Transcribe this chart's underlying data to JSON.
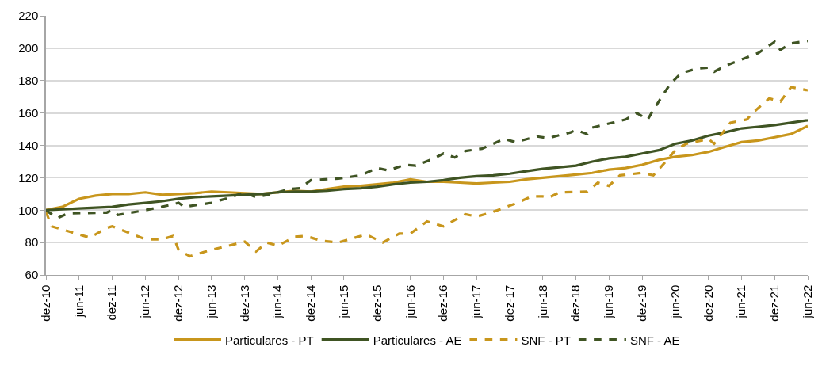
{
  "chart_data": {
    "type": "line",
    "ylim": [
      60,
      220
    ],
    "yticks": [
      60,
      80,
      100,
      120,
      140,
      160,
      180,
      200,
      220
    ],
    "xlim": [
      "2010-12",
      "2022-06"
    ],
    "xticks": [
      {
        "value": "2010-12",
        "label": "dez-10"
      },
      {
        "value": "2011-06",
        "label": "jun-11"
      },
      {
        "value": "2011-12",
        "label": "dez-11"
      },
      {
        "value": "2012-06",
        "label": "jun-12"
      },
      {
        "value": "2012-12",
        "label": "dez-12"
      },
      {
        "value": "2013-06",
        "label": "jun-13"
      },
      {
        "value": "2013-12",
        "label": "dez-13"
      },
      {
        "value": "2014-06",
        "label": "jun-14"
      },
      {
        "value": "2014-12",
        "label": "dez-14"
      },
      {
        "value": "2015-06",
        "label": "jun-15"
      },
      {
        "value": "2015-12",
        "label": "dez-15"
      },
      {
        "value": "2016-06",
        "label": "jun-16"
      },
      {
        "value": "2016-12",
        "label": "dez-16"
      },
      {
        "value": "2017-06",
        "label": "jun-17"
      },
      {
        "value": "2017-12",
        "label": "dez-17"
      },
      {
        "value": "2018-06",
        "label": "jun-18"
      },
      {
        "value": "2018-12",
        "label": "dez-18"
      },
      {
        "value": "2019-06",
        "label": "jun-19"
      },
      {
        "value": "2019-12",
        "label": "dez-19"
      },
      {
        "value": "2020-06",
        "label": "jun-20"
      },
      {
        "value": "2020-12",
        "label": "dez-20"
      },
      {
        "value": "2021-06",
        "label": "jun-21"
      },
      {
        "value": "2021-12",
        "label": "dez-21"
      },
      {
        "value": "2022-06",
        "label": "jun-22"
      }
    ],
    "grid": "y",
    "legend": "bottom",
    "marker": "none",
    "series": [
      {
        "name": "Particulares - PT",
        "color": "#c8961c",
        "line_style": "solid",
        "x": [
          "2010-12",
          "2011-03",
          "2011-06",
          "2011-09",
          "2011-12",
          "2012-03",
          "2012-06",
          "2012-09",
          "2012-12",
          "2013-03",
          "2013-06",
          "2013-09",
          "2013-12",
          "2014-03",
          "2014-06",
          "2014-09",
          "2014-12",
          "2015-03",
          "2015-06",
          "2015-09",
          "2015-12",
          "2016-03",
          "2016-06",
          "2016-09",
          "2016-12",
          "2017-03",
          "2017-06",
          "2017-09",
          "2017-12",
          "2018-03",
          "2018-06",
          "2018-09",
          "2018-12",
          "2019-03",
          "2019-06",
          "2019-09",
          "2019-12",
          "2020-03",
          "2020-06",
          "2020-09",
          "2020-12",
          "2021-03",
          "2021-06",
          "2021-09",
          "2021-12",
          "2022-03",
          "2022-06"
        ],
        "values": [
          100,
          102,
          107,
          109,
          110,
          110,
          111,
          109.5,
          110,
          110.5,
          111.5,
          111,
          110.5,
          110,
          111,
          112,
          111.5,
          113,
          114.5,
          115,
          116,
          117,
          119,
          117.5,
          117.5,
          117,
          116.5,
          117,
          117.5,
          119,
          120,
          121,
          122,
          123,
          125,
          126,
          128,
          131,
          133,
          134,
          136,
          139,
          142,
          143,
          145,
          147,
          152
        ]
      },
      {
        "name": "Particulares - AE",
        "color": "#3f5423",
        "line_style": "solid",
        "x": [
          "2010-12",
          "2011-03",
          "2011-06",
          "2011-09",
          "2011-12",
          "2012-03",
          "2012-06",
          "2012-09",
          "2012-12",
          "2013-03",
          "2013-06",
          "2013-09",
          "2013-12",
          "2014-03",
          "2014-06",
          "2014-09",
          "2014-12",
          "2015-03",
          "2015-06",
          "2015-09",
          "2015-12",
          "2016-03",
          "2016-06",
          "2016-09",
          "2016-12",
          "2017-03",
          "2017-06",
          "2017-09",
          "2017-12",
          "2018-03",
          "2018-06",
          "2018-09",
          "2018-12",
          "2019-03",
          "2019-06",
          "2019-09",
          "2019-12",
          "2020-03",
          "2020-06",
          "2020-09",
          "2020-12",
          "2021-03",
          "2021-06",
          "2021-09",
          "2021-12",
          "2022-03",
          "2022-06"
        ],
        "values": [
          100,
          100.5,
          101,
          101.5,
          102,
          103.5,
          104.5,
          105.5,
          107,
          108,
          108.5,
          109,
          109.5,
          110,
          111,
          111.5,
          111.5,
          112,
          113,
          113.5,
          114.5,
          116,
          117,
          117.5,
          118.5,
          120,
          121,
          121.5,
          122.5,
          124,
          125.5,
          126.5,
          127.5,
          130,
          132,
          133,
          135,
          137,
          141,
          143,
          146,
          148,
          150.5,
          151.5,
          152.5,
          154,
          155.5
        ]
      },
      {
        "name": "SNF - PT",
        "color": "#c8961c",
        "line_style": "dashed",
        "x": [
          "2010-12",
          "2011-01",
          "2011-04",
          "2011-08",
          "2011-11",
          "2011-12",
          "2012-03",
          "2012-06",
          "2012-09",
          "2012-11",
          "2012-12",
          "2013-02",
          "2013-06",
          "2013-09",
          "2013-12",
          "2014-02",
          "2014-04",
          "2014-06",
          "2014-09",
          "2014-11",
          "2015-02",
          "2015-05",
          "2015-10",
          "2016-01",
          "2016-04",
          "2016-06",
          "2016-09",
          "2016-12",
          "2017-04",
          "2017-06",
          "2017-09",
          "2018-01",
          "2018-04",
          "2018-06",
          "2018-07",
          "2018-09",
          "2019-02",
          "2019-04",
          "2019-06",
          "2019-08",
          "2019-12",
          "2020-02",
          "2020-04",
          "2020-06",
          "2020-08",
          "2020-12",
          "2021-01",
          "2021-04",
          "2021-07",
          "2021-08",
          "2021-11",
          "2022-01",
          "2022-03",
          "2022-06"
        ],
        "values": [
          99,
          90,
          87,
          83,
          89,
          90,
          86,
          82,
          82,
          84,
          75.5,
          71.5,
          75.5,
          78,
          80.5,
          74.5,
          80,
          78,
          83.5,
          84,
          81,
          80,
          85,
          80,
          85.5,
          85.5,
          93,
          90,
          97.5,
          96,
          99,
          104,
          108.5,
          108.5,
          107.5,
          111,
          111.5,
          117,
          115,
          121.5,
          123,
          121.5,
          129,
          137,
          141,
          144,
          141,
          154,
          156,
          160,
          169,
          167,
          176,
          174
        ]
      },
      {
        "name": "SNF - AE",
        "color": "#3f5423",
        "line_style": "dashed",
        "x": [
          "2010-12",
          "2011-02",
          "2011-04",
          "2011-11",
          "2011-12",
          "2012-01",
          "2012-06",
          "2012-11",
          "2012-12",
          "2013-01",
          "2013-06",
          "2013-09",
          "2013-12",
          "2014-02",
          "2014-05",
          "2014-08",
          "2014-10",
          "2014-12",
          "2015-05",
          "2015-09",
          "2015-12",
          "2016-02",
          "2016-05",
          "2016-07",
          "2016-10",
          "2016-12",
          "2017-02",
          "2017-04",
          "2017-07",
          "2017-11",
          "2018-01",
          "2018-05",
          "2018-07",
          "2018-11",
          "2018-12",
          "2019-02",
          "2019-03",
          "2019-09",
          "2019-11",
          "2020-01",
          "2020-02",
          "2020-05",
          "2020-07",
          "2020-10",
          "2020-12",
          "2021-01",
          "2021-03",
          "2021-06",
          "2021-09",
          "2021-12",
          "2022-01",
          "2022-03",
          "2022-06"
        ],
        "values": [
          100,
          95,
          98,
          98.5,
          100,
          97,
          100,
          103.5,
          104.5,
          102,
          104.5,
          107.5,
          111,
          108,
          110,
          113,
          113.5,
          118.5,
          119.5,
          121.5,
          126,
          124.5,
          128,
          127.5,
          131.5,
          135,
          132.5,
          136.5,
          138,
          144,
          142,
          145.5,
          144.5,
          148,
          149.5,
          147,
          151,
          156,
          160,
          156,
          162,
          177.5,
          184.5,
          187.5,
          188,
          185.5,
          189,
          193,
          197,
          204,
          199,
          203,
          204.5
        ]
      }
    ]
  }
}
